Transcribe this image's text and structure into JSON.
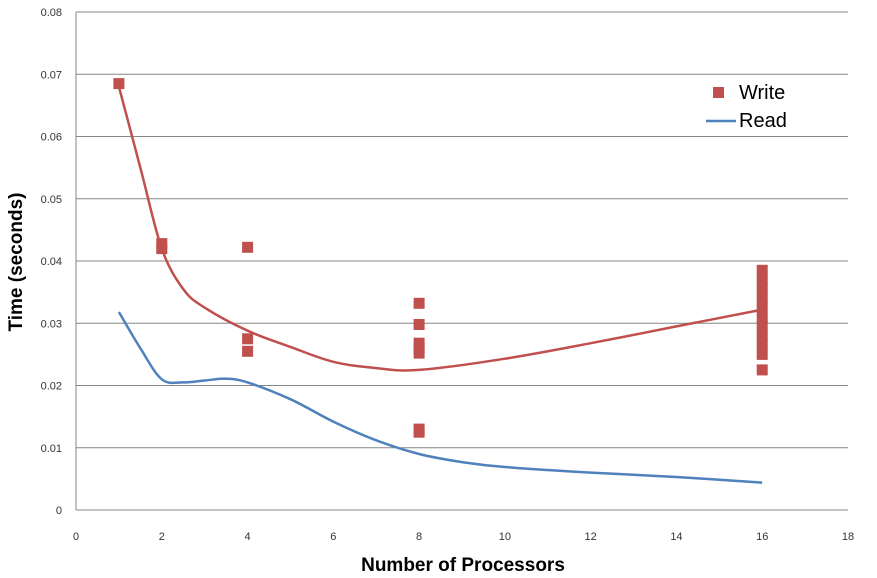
{
  "chart_data": {
    "type": "scatter",
    "xlabel": "Number of Processors",
    "ylabel": "Time (seconds)",
    "xlim": [
      0,
      18
    ],
    "ylim": [
      0,
      0.08
    ],
    "x_ticks": [
      "0",
      "2",
      "4",
      "6",
      "8",
      "10",
      "12",
      "14",
      "16",
      "18"
    ],
    "y_ticks": [
      "0",
      "0.01",
      "0.02",
      "0.03",
      "0.04",
      "0.05",
      "0.06",
      "0.07",
      "0.08"
    ],
    "grid": "horizontal",
    "legend_position": "top-right",
    "series": [
      {
        "name": "Write",
        "kind": "markers",
        "color": "#C0504D",
        "points": [
          [
            1,
            0.0685
          ],
          [
            2,
            0.0428
          ],
          [
            2,
            0.042
          ],
          [
            4,
            0.0422
          ],
          [
            4,
            0.0275
          ],
          [
            4,
            0.0255
          ],
          [
            8,
            0.0332
          ],
          [
            8,
            0.0298
          ],
          [
            8,
            0.0268
          ],
          [
            8,
            0.026
          ],
          [
            8,
            0.0252
          ],
          [
            8,
            0.013
          ],
          [
            8,
            0.0125
          ],
          [
            16,
            0.0385
          ],
          [
            16,
            0.037
          ],
          [
            16,
            0.0355
          ],
          [
            16,
            0.034
          ],
          [
            16,
            0.0325
          ],
          [
            16,
            0.031
          ],
          [
            16,
            0.0295
          ],
          [
            16,
            0.028
          ],
          [
            16,
            0.0265
          ],
          [
            16,
            0.025
          ],
          [
            16,
            0.0225
          ]
        ],
        "trend": {
          "color": "#C0504D",
          "x": [
            1,
            1.5,
            2,
            2.5,
            3,
            4,
            5,
            6,
            7,
            8,
            10,
            12,
            14,
            16
          ],
          "y": [
            0.068,
            0.055,
            0.042,
            0.0355,
            0.0325,
            0.0288,
            0.0262,
            0.0238,
            0.0228,
            0.0225,
            0.0243,
            0.0268,
            0.0295,
            0.0322
          ]
        }
      },
      {
        "name": "Read",
        "kind": "line",
        "color": "#4F81BD",
        "x": [
          1,
          1.5,
          2,
          2.5,
          3,
          3.5,
          4,
          5,
          6,
          7,
          8,
          9,
          10,
          12,
          14,
          16
        ],
        "y": [
          0.0318,
          0.026,
          0.021,
          0.0205,
          0.0208,
          0.0211,
          0.0205,
          0.0178,
          0.0142,
          0.0112,
          0.009,
          0.0077,
          0.0069,
          0.006,
          0.0053,
          0.0044
        ]
      }
    ]
  }
}
